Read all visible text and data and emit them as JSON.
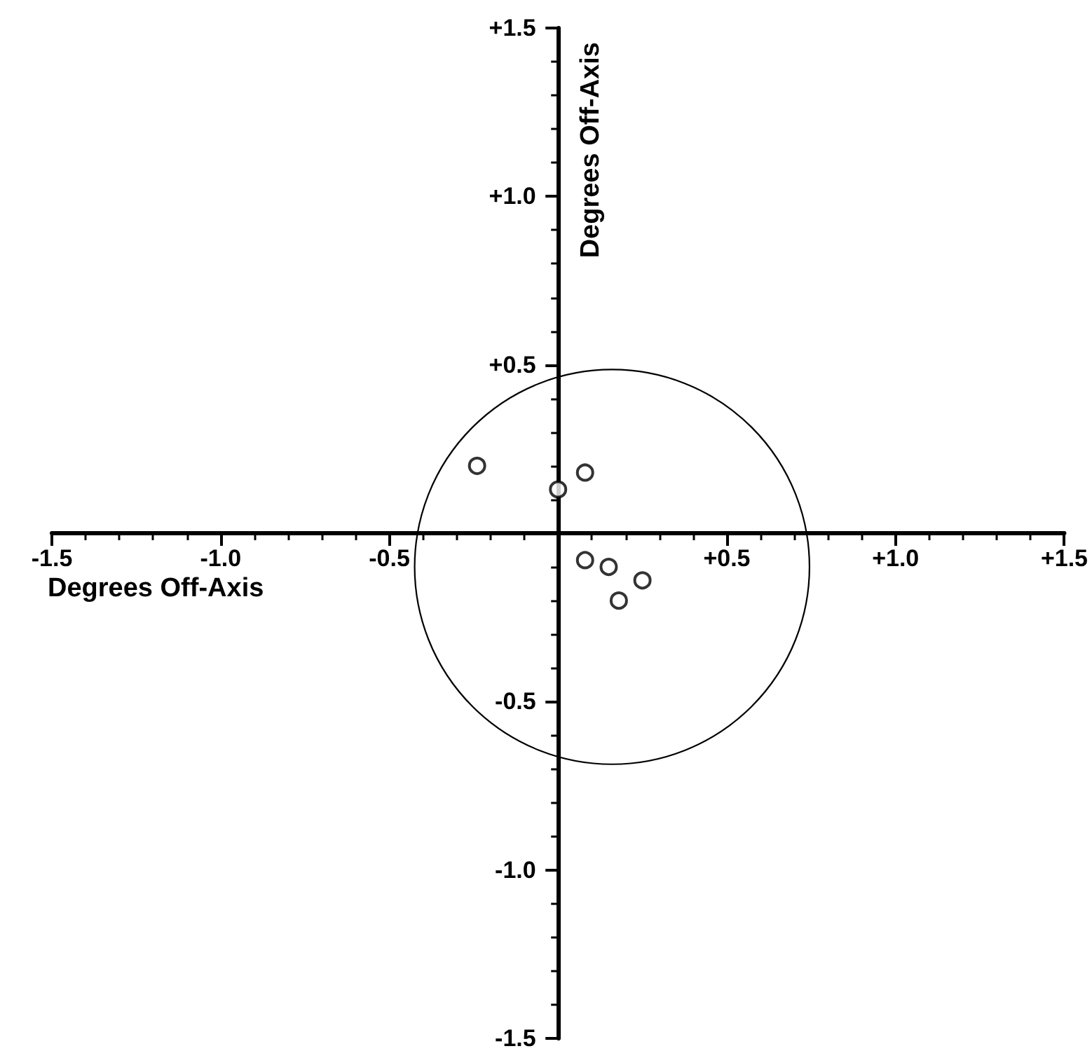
{
  "chart_data": {
    "type": "scatter",
    "xlabel": "Degrees Off-Axis",
    "ylabel": "Degrees Off-Axis",
    "xlim": [
      -1.5,
      1.5
    ],
    "ylim": [
      -1.5,
      1.5
    ],
    "xticks": [
      {
        "value": -1.5,
        "label": "-1.5"
      },
      {
        "value": -1.0,
        "label": "-1.0"
      },
      {
        "value": -0.5,
        "label": "-0.5"
      },
      {
        "value": 0,
        "label": null
      },
      {
        "value": 0.5,
        "label": "+0.5"
      },
      {
        "value": 1.0,
        "label": "+1.0"
      },
      {
        "value": 1.5,
        "label": "+1.5"
      }
    ],
    "yticks": [
      {
        "value": -1.5,
        "label": "-1.5"
      },
      {
        "value": -1.0,
        "label": "-1.0"
      },
      {
        "value": -0.5,
        "label": "-0.5"
      },
      {
        "value": 0,
        "label": null
      },
      {
        "value": 0.5,
        "label": "+0.5"
      },
      {
        "value": 1.0,
        "label": "+1.0"
      },
      {
        "value": 1.5,
        "label": "+1.5"
      }
    ],
    "grid": false,
    "marker": "circle",
    "series": [
      {
        "color": "#000000",
        "x": [
          -0.24,
          0,
          0.08,
          0.08,
          0.15,
          0.25,
          0.18
        ],
        "values": [
          0.2,
          0.13,
          0.18,
          -0.08,
          -0.1,
          -0.14,
          -0.2
        ]
      }
    ]
  }
}
